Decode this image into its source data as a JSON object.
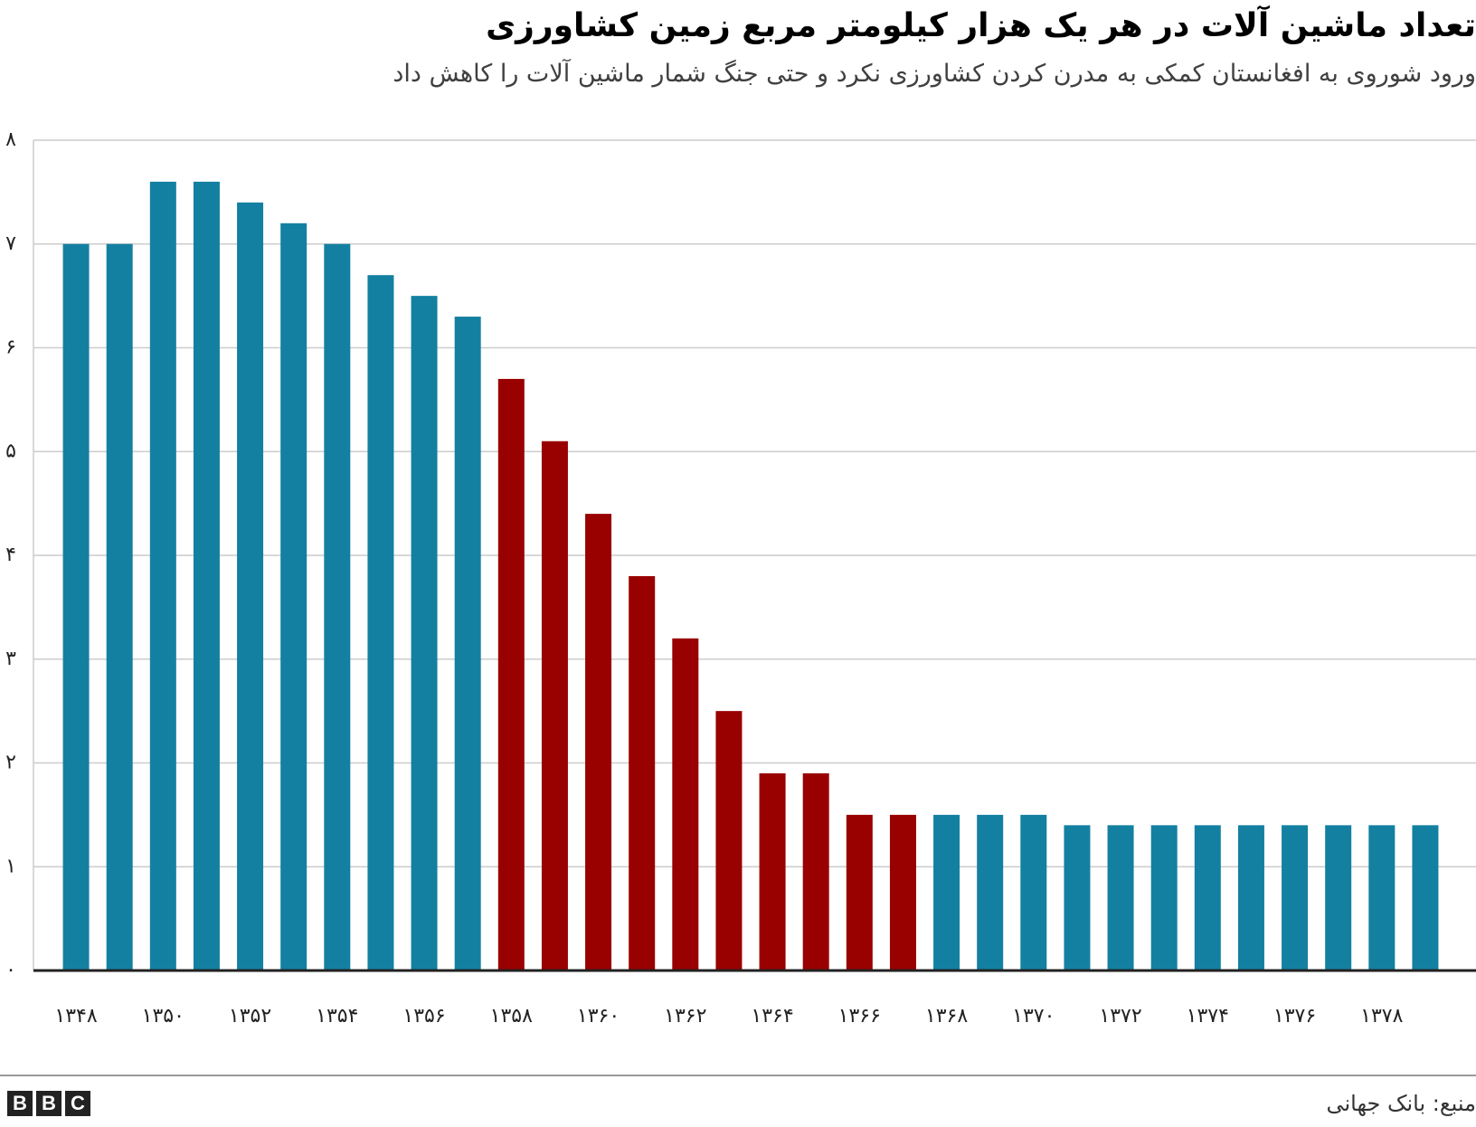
{
  "chart_data": {
    "type": "bar",
    "title": "تعداد ماشین آلات در هر یک هزار کیلومتر مربع زمین کشاورزی",
    "subtitle": "ورود شوروی به افغانستان کمکی به مدرن کردن کشاورزی نکرد و حتی جنگ شمار ماشین آلات را کاهش داد",
    "categories": [
      "1348",
      "1349",
      "1350",
      "1351",
      "1352",
      "1353",
      "1354",
      "1355",
      "1356",
      "1357",
      "1358",
      "1359",
      "1360",
      "1361",
      "1362",
      "1363",
      "1364",
      "1365",
      "1366",
      "1367",
      "1368",
      "1369",
      "1370",
      "1371",
      "1372",
      "1373",
      "1374",
      "1375",
      "1376",
      "1377",
      "1378",
      "1379"
    ],
    "values": [
      7.0,
      7.0,
      7.6,
      7.6,
      7.4,
      7.2,
      7.0,
      6.7,
      6.5,
      6.3,
      5.7,
      5.1,
      4.4,
      3.8,
      3.2,
      2.5,
      1.9,
      1.9,
      1.5,
      1.5,
      1.5,
      1.5,
      1.5,
      1.4,
      1.4,
      1.4,
      1.4,
      1.4,
      1.4,
      1.4,
      1.4,
      1.4
    ],
    "highlight": [
      false,
      false,
      false,
      false,
      false,
      false,
      false,
      false,
      false,
      false,
      true,
      true,
      true,
      true,
      true,
      true,
      true,
      true,
      true,
      true,
      false,
      false,
      false,
      false,
      false,
      false,
      false,
      false,
      false,
      false,
      false,
      false
    ],
    "ylim": [
      0,
      8
    ],
    "yticks": [
      "۰",
      "۱",
      "۲",
      "۳",
      "۴",
      "۵",
      "۶",
      "۷",
      "۸"
    ],
    "xtick_labels": [
      "۱۳۴۸",
      "۱۳۵۰",
      "۱۳۵۲",
      "۱۳۵۴",
      "۱۳۵۶",
      "۱۳۵۸",
      "۱۳۶۰",
      "۱۳۶۲",
      "۱۳۶۴",
      "۱۳۶۶",
      "۱۳۶۸",
      "۱۳۷۰",
      "۱۳۷۲",
      "۱۳۷۴",
      "۱۳۷۶",
      "۱۳۷۸"
    ],
    "colors": {
      "default": "#1380a1",
      "highlight": "#990000",
      "grid": "#cccccc",
      "baseline": "#222222"
    },
    "grid": true
  },
  "footer": {
    "source": "منبع: بانک جهانی",
    "logo": [
      "B",
      "B",
      "C"
    ]
  }
}
